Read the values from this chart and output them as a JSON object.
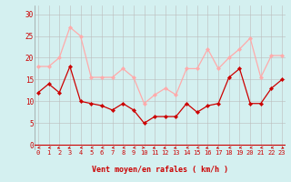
{
  "x": [
    0,
    1,
    2,
    3,
    4,
    5,
    6,
    7,
    8,
    9,
    10,
    11,
    12,
    13,
    14,
    15,
    16,
    17,
    18,
    19,
    20,
    21,
    22,
    23
  ],
  "wind_avg": [
    12,
    14,
    12,
    18,
    10,
    9.5,
    9,
    8,
    9.5,
    8,
    5,
    6.5,
    6.5,
    6.5,
    9.5,
    7.5,
    9,
    9.5,
    15.5,
    17.5,
    9.5,
    9.5,
    13,
    15
  ],
  "wind_gust": [
    18,
    18,
    20,
    27,
    25,
    15.5,
    15.5,
    15.5,
    17.5,
    15.5,
    9.5,
    11.5,
    13,
    11.5,
    17.5,
    17.5,
    22,
    17.5,
    20,
    22,
    24.5,
    15.5,
    20.5,
    20.5
  ],
  "avg_color": "#cc0000",
  "gust_color": "#ffaaaa",
  "bg_color": "#d4f0f0",
  "grid_color": "#bbbbbb",
  "xlabel": "Vent moyen/en rafales ( km/h )",
  "xlabel_color": "#cc0000",
  "tick_color": "#cc0000",
  "yticks": [
    0,
    5,
    10,
    15,
    20,
    25,
    30
  ],
  "ylim": [
    -1,
    32
  ],
  "xlim": [
    -0.3,
    23.3
  ]
}
